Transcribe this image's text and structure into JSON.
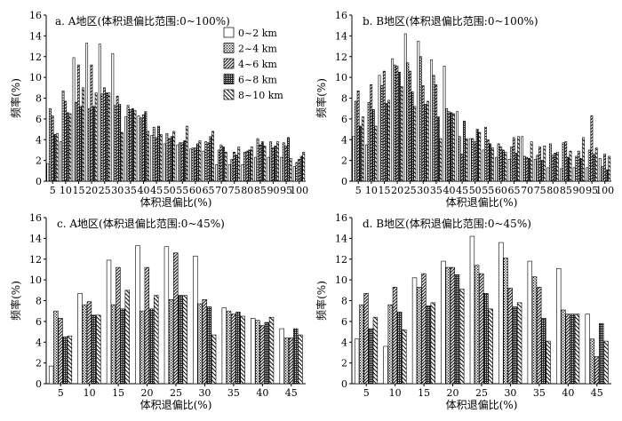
{
  "legend": {
    "items": [
      "0~2 km",
      "2~4 km",
      "4~6 km",
      "6~8 km",
      "8~10 km"
    ],
    "placement": "top-right of panel a"
  },
  "series_styles": [
    "hollow-white",
    "dotted-black",
    "dense-hatch",
    "checker-dark",
    "diagonal-hatch"
  ],
  "chart_data": [
    {
      "id": "a",
      "type": "bar",
      "title": "a. A地区(体积退偏比范围:0~100%)",
      "xlabel": "体积退偏比(%)",
      "ylabel": "频率(%)",
      "ylim": [
        0,
        16
      ],
      "yticks": [
        0,
        2,
        4,
        6,
        8,
        10,
        12,
        14,
        16
      ],
      "categories": [
        "5",
        "10",
        "15",
        "20",
        "25",
        "30",
        "35",
        "40",
        "45",
        "50",
        "55",
        "60",
        "65",
        "70",
        "75",
        "80",
        "85",
        "90",
        "95",
        "100"
      ],
      "series": [
        {
          "name": "0~2 km",
          "values": [
            1.7,
            3.8,
            11.9,
            13.3,
            13.2,
            12.3,
            6.2,
            6.3,
            4.4,
            3.6,
            3.5,
            3.1,
            2.9,
            1.6,
            1.6,
            1.6,
            2.3,
            2.3,
            2.3,
            1.4
          ]
        },
        {
          "name": "2~4 km",
          "values": [
            7.0,
            8.7,
            7.6,
            7.0,
            8.4,
            7.3,
            7.3,
            6.1,
            5.2,
            4.6,
            3.7,
            3.2,
            3.8,
            3.0,
            2.1,
            2.8,
            4.1,
            3.8,
            3.7,
            1.8
          ]
        },
        {
          "name": "4~6 km",
          "values": [
            6.3,
            7.7,
            11.2,
            11.2,
            9.0,
            8.2,
            6.9,
            6.4,
            4.2,
            4.1,
            3.7,
            3.2,
            3.7,
            3.5,
            2.8,
            2.9,
            3.5,
            3.2,
            3.4,
            2.1
          ]
        },
        {
          "name": "6~8 km",
          "values": [
            4.5,
            6.6,
            7.2,
            7.2,
            8.5,
            7.4,
            7.0,
            6.7,
            5.3,
            4.3,
            3.9,
            3.6,
            4.3,
            3.3,
            2.5,
            3.0,
            3.8,
            3.4,
            4.2,
            2.4
          ]
        },
        {
          "name": "8~10 km",
          "values": [
            4.6,
            6.5,
            9.0,
            8.5,
            8.5,
            4.7,
            6.8,
            4.8,
            4.5,
            4.8,
            5.3,
            3.9,
            4.8,
            2.8,
            3.3,
            3.3,
            3.4,
            3.8,
            2.2,
            2.8
          ]
        }
      ]
    },
    {
      "id": "b",
      "type": "bar",
      "title": "b. B地区(体积退偏比范围:0~100%)",
      "xlabel": "体积退偏比(%)",
      "ylabel": "频率(%)",
      "ylim": [
        0,
        16
      ],
      "yticks": [
        0,
        2,
        4,
        6,
        8,
        10,
        12,
        14,
        16
      ],
      "categories": [
        "5",
        "10",
        "15",
        "20",
        "25",
        "30",
        "35",
        "40",
        "45",
        "50",
        "55",
        "60",
        "65",
        "70",
        "75",
        "80",
        "85",
        "90",
        "95",
        "100"
      ],
      "series": [
        {
          "name": "0~2 km",
          "values": [
            4.3,
            3.5,
            10.2,
            11.8,
            14.2,
            13.5,
            11.7,
            11.1,
            6.7,
            4.1,
            3.0,
            2.3,
            2.1,
            4.3,
            2.1,
            1.3,
            1.2,
            1.3,
            1.3,
            2.2
          ]
        },
        {
          "name": "2~4 km",
          "values": [
            7.7,
            7.6,
            9.2,
            11.2,
            11.4,
            12.0,
            10.2,
            7.0,
            4.3,
            4.1,
            5.2,
            3.6,
            3.3,
            2.4,
            2.5,
            3.6,
            3.7,
            2.4,
            3.0,
            1.4
          ]
        },
        {
          "name": "4~6 km",
          "values": [
            8.7,
            9.3,
            10.6,
            11.1,
            10.6,
            9.2,
            9.3,
            6.7,
            2.6,
            3.8,
            4.0,
            3.3,
            4.2,
            2.3,
            3.3,
            2.5,
            3.8,
            2.9,
            6.3,
            2.6
          ]
        },
        {
          "name": "6~8 km",
          "values": [
            5.3,
            6.9,
            7.5,
            10.5,
            8.6,
            7.4,
            6.2,
            6.6,
            5.8,
            5.0,
            3.6,
            3.0,
            2.7,
            2.2,
            2.0,
            2.7,
            2.3,
            2.2,
            2.6,
            1.1
          ]
        },
        {
          "name": "8~10 km",
          "values": [
            6.2,
            5.3,
            7.8,
            9.1,
            7.2,
            7.7,
            4.1,
            6.5,
            4.1,
            4.7,
            3.2,
            2.8,
            4.3,
            3.8,
            3.4,
            2.8,
            2.9,
            4.2,
            3.2,
            2.4
          ]
        }
      ]
    },
    {
      "id": "c",
      "type": "bar",
      "title": "c. A地区(体积退偏比范围:0~45%)",
      "xlabel": "体积退偏比(%)",
      "ylabel": "频率(%)",
      "ylim": [
        0,
        16
      ],
      "yticks": [
        0,
        2,
        4,
        6,
        8,
        10,
        12,
        14,
        16
      ],
      "categories": [
        "5",
        "10",
        "15",
        "20",
        "25",
        "30",
        "35",
        "40",
        "45"
      ],
      "series": [
        {
          "name": "0~2 km",
          "values": [
            1.7,
            8.7,
            11.9,
            13.3,
            13.2,
            12.3,
            7.3,
            6.3,
            5.3
          ]
        },
        {
          "name": "2~4 km",
          "values": [
            7.0,
            7.6,
            7.6,
            7.0,
            8.1,
            7.7,
            7.0,
            6.1,
            4.4
          ]
        },
        {
          "name": "4~6 km",
          "values": [
            6.3,
            7.9,
            11.2,
            11.2,
            12.6,
            8.1,
            6.7,
            5.6,
            4.4
          ]
        },
        {
          "name": "6~8 km",
          "values": [
            4.5,
            6.6,
            7.2,
            7.2,
            8.5,
            7.4,
            6.9,
            5.9,
            5.3
          ]
        },
        {
          "name": "8~10 km",
          "values": [
            4.6,
            6.6,
            9.0,
            8.5,
            8.5,
            4.7,
            6.5,
            6.4,
            4.7
          ]
        }
      ]
    },
    {
      "id": "d",
      "type": "bar",
      "title": "d. B地区(体积退偏比范围:0~45%)",
      "xlabel": "体积退偏比(%)",
      "ylabel": "频率(%)",
      "ylim": [
        0,
        16
      ],
      "yticks": [
        0,
        2,
        4,
        6,
        8,
        10,
        12,
        14,
        16
      ],
      "categories": [
        "5",
        "10",
        "15",
        "20",
        "25",
        "30",
        "35",
        "40",
        "45"
      ],
      "series": [
        {
          "name": "0~2 km",
          "values": [
            4.3,
            3.6,
            10.2,
            11.8,
            14.2,
            13.6,
            11.8,
            11.1,
            6.7
          ]
        },
        {
          "name": "2~4 km",
          "values": [
            7.6,
            7.6,
            9.3,
            11.2,
            11.4,
            12.1,
            10.3,
            7.1,
            4.3
          ]
        },
        {
          "name": "4~6 km",
          "values": [
            8.7,
            9.3,
            10.6,
            11.2,
            10.6,
            9.2,
            9.3,
            6.7,
            2.6
          ]
        },
        {
          "name": "6~8 km",
          "values": [
            5.3,
            6.9,
            7.5,
            10.5,
            8.7,
            7.4,
            6.3,
            6.7,
            5.8
          ]
        },
        {
          "name": "8~10 km",
          "values": [
            6.4,
            5.2,
            7.8,
            9.1,
            7.2,
            7.8,
            4.1,
            6.7,
            4.1
          ]
        }
      ]
    }
  ]
}
